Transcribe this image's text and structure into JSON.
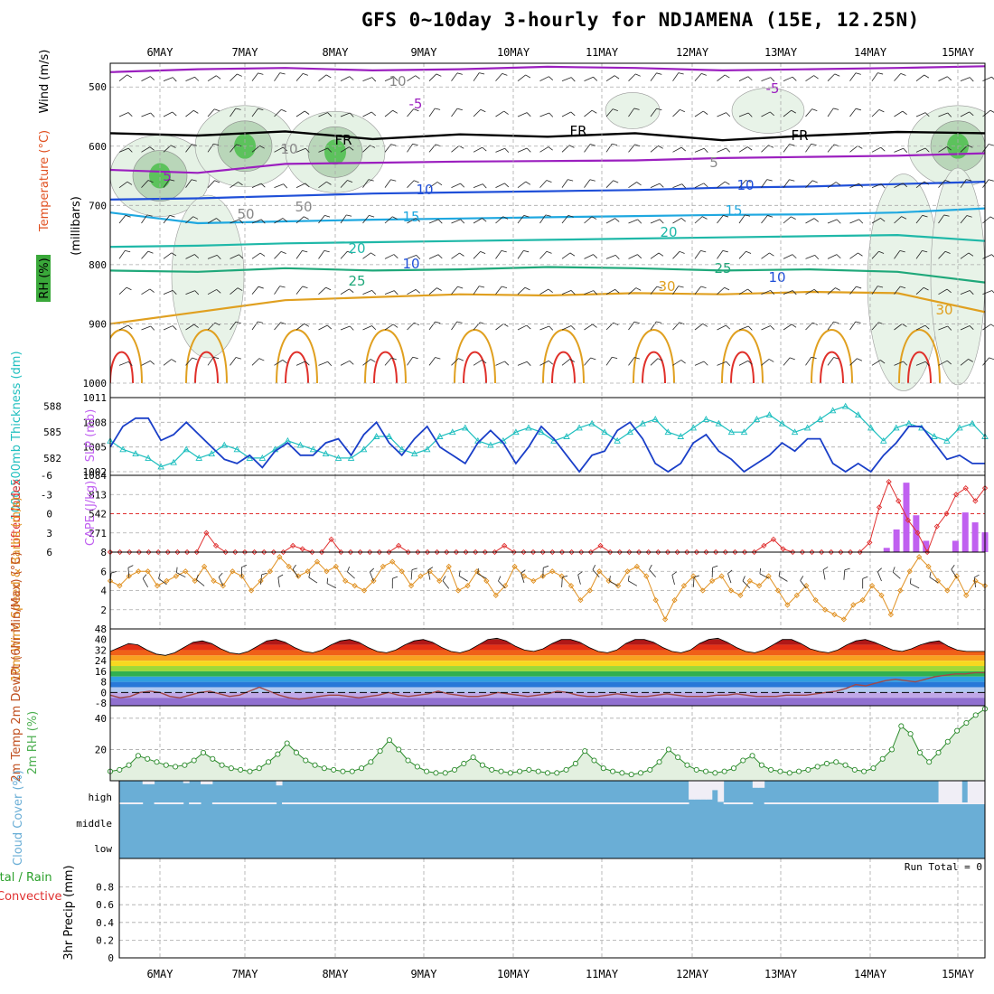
{
  "title": "GFS 0~10day 3-hourly for NDJAMENA (15E, 12.25N)",
  "chart_data": {
    "type": "multi-panel meteogram",
    "days": [
      "6MAY",
      "7MAY",
      "8MAY",
      "9MAY",
      "10MAY",
      "11MAY",
      "12MAY",
      "13MAY",
      "14MAY",
      "15MAY"
    ],
    "colors": {
      "purple": "#9b1fbf",
      "freezing": "#000000",
      "blue": "#1f4fd8",
      "cyan": "#1fa8e0",
      "teal": "#1fb8a8",
      "green": "#1fa87a",
      "orange": "#e0a020",
      "red": "#e0302a",
      "rh": "#4caf50",
      "slp": "#1a3fc8",
      "thick": "#1fbfbf",
      "cape": "#c060f0",
      "lifted": "#e03030",
      "wind": "#e09020",
      "cloud": "#6aaed6"
    },
    "upper_air": {
      "ylabel": "(millibars)",
      "label_wind": "Wind (m/s)",
      "label_temp": "Temperature (°C)",
      "label_rh": "RH (%)",
      "yticks": [
        "500",
        "600",
        "700",
        "800",
        "900",
        "1000"
      ],
      "ylim": [
        460,
        1000
      ],
      "contour_labels": [
        "10",
        "-5",
        "FR",
        "FR",
        "FR",
        "-5",
        "5",
        "5",
        "10",
        "10",
        "15",
        "15",
        "20",
        "20",
        "25",
        "25",
        "30",
        "10",
        "10",
        "30",
        "50",
        "50",
        "10"
      ],
      "isotherms": [
        {
          "label": "-5",
          "p": [
            475,
            470,
            468,
            472,
            470,
            466,
            468,
            472,
            470,
            468,
            465
          ]
        },
        {
          "label": "FR",
          "p": [
            578,
            582,
            575,
            588,
            580,
            584,
            578,
            590,
            582,
            576,
            578
          ]
        },
        {
          "label": "5",
          "p": [
            640,
            645,
            630,
            628,
            626,
            625,
            624,
            620,
            618,
            616,
            612
          ]
        },
        {
          "label": "10",
          "p": [
            690,
            688,
            684,
            680,
            678,
            676,
            674,
            670,
            668,
            664,
            660
          ]
        },
        {
          "label": "15",
          "p": [
            712,
            730,
            727,
            724,
            722,
            720,
            718,
            716,
            715,
            712,
            705
          ]
        },
        {
          "label": "20",
          "p": [
            770,
            768,
            764,
            762,
            760,
            758,
            756,
            754,
            752,
            750,
            760
          ]
        },
        {
          "label": "25",
          "p": [
            810,
            812,
            806,
            810,
            808,
            804,
            806,
            810,
            808,
            812,
            830
          ]
        },
        {
          "label": "30",
          "p": [
            900,
            880,
            860,
            855,
            850,
            852,
            848,
            850,
            846,
            848,
            880
          ]
        }
      ]
    },
    "slp_thickness": {
      "label_thick": "1000-500mb Thickness (dm)",
      "label_slp": "SLP (mb)",
      "thick_ticks": [
        "588",
        "585",
        "582"
      ],
      "slp_ticks": [
        "1011",
        "1008",
        "1005",
        "1002"
      ],
      "slp": [
        1005,
        1007.5,
        1008.5,
        1008.5,
        1005.8,
        1006.5,
        1008,
        1006.5,
        1005,
        1003.5,
        1003,
        1004,
        1002.5,
        1004.5,
        1005.5,
        1004,
        1004,
        1005.5,
        1006,
        1004,
        1006.5,
        1008,
        1005.5,
        1004,
        1006,
        1007.5,
        1005,
        1004,
        1003,
        1005.5,
        1007,
        1005.5,
        1003,
        1005,
        1007.5,
        1006,
        1004,
        1002,
        1004,
        1004.5,
        1007,
        1008,
        1006,
        1003,
        1002,
        1003,
        1005.5,
        1006.5,
        1004.5,
        1003.5,
        1002,
        1003,
        1004,
        1005.5,
        1004.5,
        1006,
        1006,
        1003,
        1002,
        1003,
        1002,
        1004,
        1005.5,
        1007.5,
        1007.5,
        1005.5,
        1003.5,
        1004,
        1003,
        1003
      ],
      "thickness": [
        584,
        583,
        582.5,
        582,
        581,
        581.5,
        583,
        582,
        582.5,
        583.5,
        583,
        582,
        582,
        583,
        584,
        583.5,
        583,
        582.5,
        582,
        582,
        583,
        584.5,
        584.5,
        583,
        582.5,
        583,
        584.5,
        585,
        585.5,
        584,
        583.5,
        584,
        585,
        585.5,
        585,
        584,
        584.5,
        585.5,
        586,
        585,
        584,
        585,
        586,
        586.5,
        585,
        584.5,
        585.5,
        586.5,
        586,
        585,
        585,
        586.5,
        587,
        586,
        585,
        585.5,
        586.5,
        587.5,
        588,
        587,
        585.5,
        584,
        585.5,
        586,
        585.5,
        584.5,
        584,
        585.5,
        586,
        584.5
      ]
    },
    "cape_li": {
      "label_li": "Lifted Index",
      "label_cape": "CAPE (J/kg)",
      "li_ticks": [
        "-6",
        "-3",
        "0",
        "3",
        "6"
      ],
      "cape_ticks": [
        "1084",
        "813",
        "542",
        "271",
        "8"
      ],
      "lifted_index": [
        6,
        6,
        6,
        6,
        6,
        6,
        6,
        6,
        6,
        6,
        3,
        5,
        6,
        6,
        6,
        6,
        6,
        6,
        6,
        5,
        5.5,
        6,
        6,
        4,
        6,
        6,
        6,
        6,
        6,
        6,
        5,
        6,
        6,
        6,
        6,
        6,
        6,
        6,
        6,
        6,
        6,
        5,
        6,
        6,
        6,
        6,
        6,
        6,
        6,
        6,
        6,
        5,
        6,
        6,
        6,
        6,
        6,
        6,
        6,
        6,
        6,
        6,
        6,
        6,
        6,
        6,
        6,
        6,
        5,
        4,
        5.5,
        6,
        6,
        6,
        6,
        6,
        6,
        6,
        6,
        4.5,
        -1,
        -5,
        -2,
        1,
        3,
        6,
        2,
        0,
        -3,
        -4,
        -2,
        -4
      ],
      "cape": [
        0,
        0,
        0,
        0,
        0,
        0,
        0,
        0,
        0,
        0,
        0,
        0,
        0,
        0,
        0,
        0,
        0,
        0,
        0,
        0,
        0,
        0,
        0,
        0,
        0,
        0,
        0,
        0,
        0,
        0,
        0,
        0,
        0,
        0,
        0,
        0,
        0,
        0,
        0,
        0,
        0,
        0,
        0,
        0,
        0,
        0,
        0,
        0,
        0,
        0,
        0,
        0,
        0,
        0,
        0,
        0,
        0,
        0,
        0,
        0,
        0,
        0,
        0,
        0,
        0,
        0,
        0,
        0,
        0,
        0,
        0,
        0,
        0,
        0,
        0,
        0,
        0,
        0,
        0,
        60,
        320,
        980,
        520,
        160,
        0,
        0,
        160,
        560,
        420,
        280
      ]
    },
    "wind10m": {
      "label": "10m Wind Speed & Barbs (m/s)",
      "yticks": [
        "6",
        "4",
        "2"
      ],
      "ylim": [
        0,
        8
      ],
      "speed": [
        5.0,
        4.5,
        5.5,
        6.0,
        6.0,
        4.5,
        5.0,
        5.5,
        6.0,
        5.0,
        6.5,
        5.0,
        4.5,
        6.0,
        5.5,
        4.0,
        5.0,
        6.0,
        7.5,
        6.5,
        5.5,
        6.0,
        7.0,
        6.0,
        6.5,
        5.0,
        4.5,
        4.0,
        5.0,
        6.5,
        7.0,
        6.0,
        4.5,
        5.5,
        6.0,
        5.0,
        6.5,
        4.0,
        4.5,
        6.0,
        5.0,
        3.5,
        4.5,
        6.5,
        5.5,
        5.0,
        5.5,
        6.0,
        5.5,
        4.5,
        3.0,
        4.0,
        6.0,
        5.0,
        4.5,
        6.0,
        6.5,
        5.5,
        3.0,
        1.0,
        3.0,
        4.5,
        5.5,
        4.0,
        5.0,
        5.5,
        4.0,
        3.5,
        5.0,
        4.5,
        5.5,
        4.0,
        2.5,
        3.5,
        4.5,
        3.0,
        2.0,
        1.5,
        1.0,
        2.5,
        3.0,
        4.5,
        3.5,
        1.5,
        4.0,
        6.0,
        7.5,
        6.5,
        5.0,
        4.0,
        5.5,
        3.5,
        5.0,
        4.5
      ]
    },
    "temp2m": {
      "label": "2m Temp 2m DewPt (6hr Min/Max) (°C)",
      "yticks": [
        "48",
        "40",
        "32",
        "24",
        "16",
        "8",
        "0",
        "-8"
      ],
      "temp": [
        31,
        34,
        37,
        36,
        32,
        29,
        28,
        30,
        34,
        38,
        39,
        37,
        33,
        30,
        29,
        31,
        35,
        39,
        40,
        38,
        34,
        31,
        30,
        32,
        36,
        39,
        40,
        38,
        34,
        31,
        30,
        32,
        36,
        39,
        40,
        38,
        34,
        31,
        30,
        32,
        36,
        40,
        41,
        39,
        35,
        32,
        31,
        33,
        37,
        40,
        40,
        38,
        34,
        31,
        30,
        32,
        37,
        40,
        40,
        38,
        34,
        31,
        30,
        32,
        37,
        40,
        41,
        38,
        34,
        31,
        30,
        32,
        36,
        40,
        40,
        37,
        33,
        31,
        30,
        32,
        36,
        39,
        40,
        38,
        35,
        32,
        31,
        33,
        36,
        38,
        39,
        35,
        32,
        31,
        31,
        31
      ],
      "dewpt": [
        -2,
        -4,
        -3,
        0,
        1,
        0,
        -3,
        -4,
        -2,
        0,
        1,
        -1,
        -3,
        -2,
        1,
        4,
        1,
        -2,
        -4,
        -5,
        -4,
        -3,
        -2,
        -2,
        -3,
        -4,
        -3,
        -2,
        0,
        -2,
        -3,
        -2,
        -1,
        1,
        -1,
        -2,
        -3,
        -3,
        -2,
        0,
        -1,
        -2,
        -3,
        -2,
        -1,
        1,
        0,
        -2,
        -3,
        -3,
        -2,
        -1,
        -2,
        -3,
        -3,
        -2,
        -1,
        -2,
        -3,
        -3,
        -3,
        -2,
        -2,
        -1,
        -2,
        -3,
        -3,
        -3,
        -2,
        -2,
        -2,
        -1,
        0,
        1,
        3,
        6,
        5,
        7,
        9,
        10,
        9,
        8,
        10,
        12,
        13,
        14,
        14,
        15,
        15
      ]
    },
    "rh2m": {
      "label": "2m RH (%)",
      "yticks": [
        "40",
        "20"
      ],
      "ylim": [
        0,
        48
      ],
      "rh": [
        6,
        7,
        10,
        16,
        14,
        12,
        10,
        9,
        10,
        13,
        18,
        14,
        10,
        8,
        7,
        6,
        8,
        12,
        17,
        24,
        18,
        13,
        10,
        8,
        7,
        6,
        6,
        8,
        12,
        19,
        26,
        20,
        13,
        9,
        6,
        5,
        5,
        7,
        11,
        15,
        10,
        7,
        6,
        5,
        6,
        7,
        6,
        5,
        5,
        7,
        11,
        19,
        13,
        8,
        6,
        5,
        4,
        5,
        7,
        12,
        20,
        15,
        10,
        7,
        6,
        5,
        6,
        8,
        13,
        16,
        10,
        7,
        6,
        5,
        6,
        7,
        9,
        11,
        12,
        10,
        7,
        6,
        8,
        14,
        20,
        35,
        30,
        18,
        12,
        18,
        25,
        32,
        37,
        42,
        46
      ]
    },
    "cloud": {
      "label": "Cloud Cover (%)",
      "levels": [
        "high",
        "middle",
        "low"
      ],
      "high": [
        0,
        0,
        0,
        0,
        15,
        15,
        0,
        0,
        0,
        0,
        0,
        10,
        0,
        0,
        15,
        15,
        0,
        0,
        0,
        0,
        0,
        0,
        0,
        0,
        0,
        0,
        0,
        20,
        0,
        0,
        0,
        0,
        0,
        0,
        0,
        0,
        0,
        0,
        0,
        0,
        0,
        0,
        0,
        0,
        0,
        0,
        0,
        0,
        0,
        0,
        0,
        0,
        0,
        0,
        0,
        0,
        0,
        0,
        0,
        0,
        0,
        0,
        0,
        0,
        0,
        0,
        0,
        0,
        0,
        0,
        0,
        0,
        0,
        0,
        0,
        0,
        0,
        0,
        0,
        0,
        0,
        0,
        0,
        0,
        0,
        0,
        0,
        0,
        0,
        0,
        0,
        0,
        0,
        0,
        0,
        0,
        0,
        0,
        80,
        80,
        80,
        80,
        40,
        90,
        0,
        0,
        0,
        0,
        0,
        30,
        30,
        0,
        0,
        0,
        0,
        0,
        0,
        0,
        0,
        0,
        0,
        0,
        0,
        0,
        0,
        0,
        0,
        0,
        0,
        0,
        0,
        0,
        0,
        0,
        0,
        0,
        0,
        0,
        0,
        0,
        0,
        100,
        100,
        100,
        100,
        0,
        100,
        100,
        100
      ],
      "middle": [
        0,
        0,
        0,
        0,
        0,
        0,
        0,
        0,
        0,
        0,
        0,
        0,
        0,
        0,
        0,
        0,
        0,
        0,
        0,
        0,
        0,
        0,
        0,
        0,
        0,
        0,
        0,
        0,
        0,
        0,
        0,
        0,
        0,
        0,
        0,
        0,
        0,
        0,
        0,
        0,
        0,
        0,
        0,
        0,
        0,
        0,
        0,
        0,
        0,
        0,
        0,
        0,
        0,
        0,
        0,
        0,
        0,
        0,
        0,
        0,
        0,
        0,
        0,
        0,
        0,
        0,
        0,
        0,
        0,
        0,
        0,
        0,
        0,
        0,
        0,
        0,
        0,
        0,
        0,
        0,
        0,
        0,
        0,
        0,
        0,
        0,
        0,
        0,
        0,
        0,
        0,
        0,
        0,
        0,
        0,
        0,
        0,
        0,
        0,
        0,
        0,
        0,
        0,
        0,
        0,
        0,
        0,
        0,
        0,
        0,
        0,
        0,
        0,
        0,
        0,
        0,
        0,
        0,
        0,
        0,
        0,
        0,
        0,
        0,
        0,
        0,
        0,
        0,
        0,
        0,
        0,
        0,
        0,
        0,
        0,
        0,
        0,
        0,
        0,
        0,
        0,
        0,
        0,
        0,
        0,
        0,
        0,
        0,
        0,
        0,
        0,
        0,
        0,
        0
      ]
    },
    "precip": {
      "label": "3hr Precip (mm)",
      "label_total": "Total / Rain",
      "label_conv": "Convective",
      "yticks": [
        "0.8",
        "0.6",
        "0.4",
        "0.2",
        "0"
      ],
      "ylim": [
        0,
        1
      ],
      "run_total": "Run Total = 0"
    }
  }
}
